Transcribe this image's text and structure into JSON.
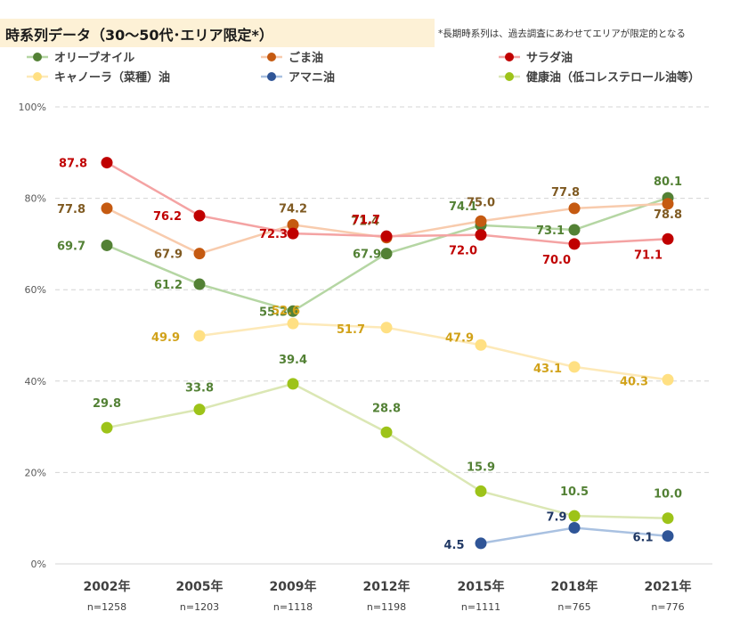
{
  "header": {
    "title": "時系列データ（30～50代･エリア限定*）",
    "note": "*長期時系列は、過去調査にあわせてエリアが限定的となる"
  },
  "chart_data": {
    "type": "line",
    "x": [
      "2002年",
      "2005年",
      "2009年",
      "2012年",
      "2015年",
      "2018年",
      "2021年"
    ],
    "sample_sizes": [
      "n=1258",
      "n=1203",
      "n=1118",
      "n=1198",
      "n=1111",
      "n=765",
      "n=776"
    ],
    "ylim": [
      0,
      100
    ],
    "yticks": [
      "0%",
      "20%",
      "40%",
      "60%",
      "80%",
      "100%"
    ],
    "grid": true,
    "legend_position": "top",
    "series": [
      {
        "name": "オリーブオイル",
        "color": "#538135",
        "line_color": "#b5d6a3",
        "label_color": "#538135",
        "values": [
          69.7,
          61.2,
          55.3,
          67.9,
          74.1,
          73.1,
          80.1
        ]
      },
      {
        "name": "ごま油",
        "color": "#c55a11",
        "line_color": "#f8cbad",
        "label_color": "#7f5a22",
        "values": [
          77.8,
          67.9,
          74.2,
          71.4,
          75.0,
          77.8,
          78.8
        ]
      },
      {
        "name": "サラダ油",
        "color": "#c00000",
        "line_color": "#f4a3a3",
        "label_color": "#c00000",
        "values": [
          87.8,
          76.2,
          72.3,
          71.7,
          72.0,
          70.0,
          71.1
        ]
      },
      {
        "name": "キャノーラ（菜種）油",
        "color": "#ffe083",
        "line_color": "#fde9b8",
        "label_color": "#d1a21a",
        "values": [
          null,
          49.9,
          52.6,
          51.7,
          47.9,
          43.1,
          40.3
        ]
      },
      {
        "name": "アマニ油",
        "color": "#2f5597",
        "line_color": "#a9c1e1",
        "label_color": "#203864",
        "values": [
          null,
          null,
          null,
          null,
          4.5,
          7.9,
          6.1
        ]
      },
      {
        "name": "健康油（低コレステロール油等）",
        "color": "#9dc319",
        "line_color": "#dbe7b4",
        "label_color": "#538135",
        "values": [
          29.8,
          33.8,
          39.4,
          28.8,
          15.9,
          10.5,
          10.0
        ]
      }
    ]
  }
}
